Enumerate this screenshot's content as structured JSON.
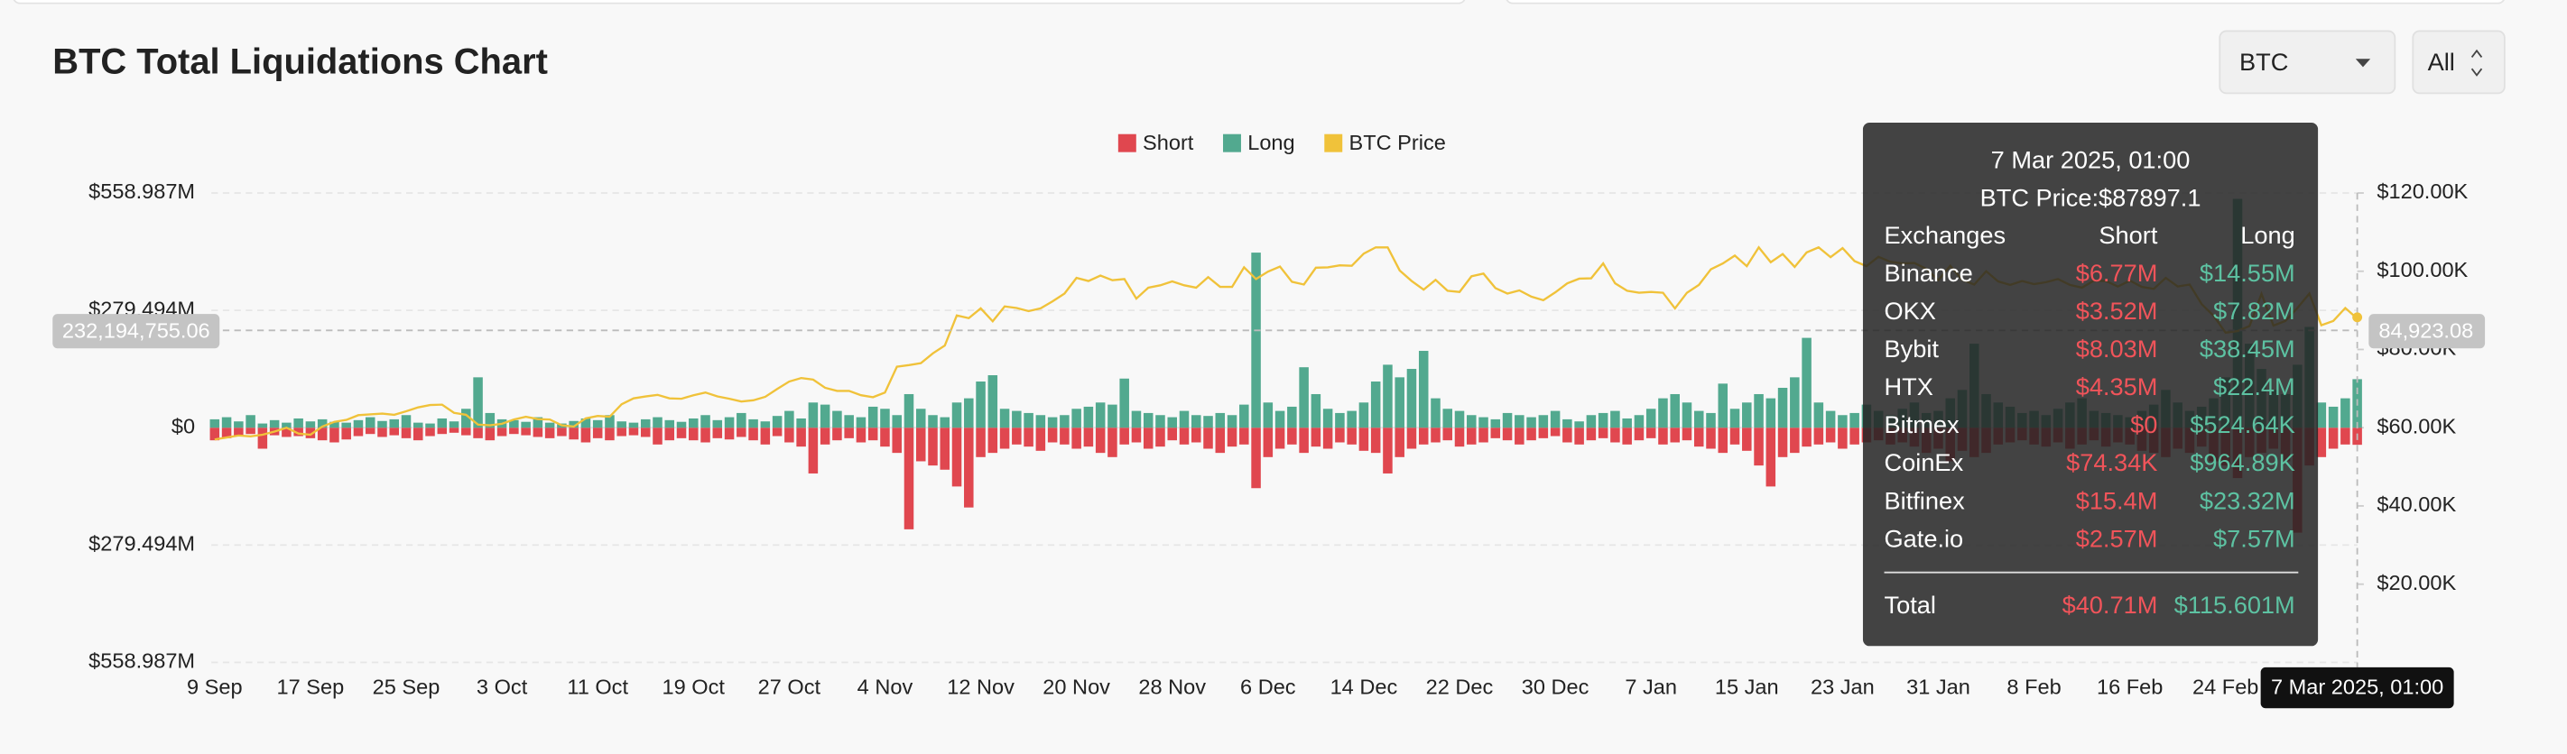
{
  "header": {
    "title": "BTC Total Liquidations Chart",
    "coin_select": "BTC",
    "range_select": "All"
  },
  "chart_data": {
    "type": "bar",
    "legend": "top",
    "categories": [
      "9 Sep",
      null,
      null,
      null,
      null,
      null,
      null,
      null,
      "17 Sep",
      null,
      null,
      null,
      null,
      null,
      null,
      null,
      "25 Sep",
      null,
      null,
      null,
      null,
      null,
      null,
      null,
      "3 Oct",
      null,
      null,
      null,
      null,
      null,
      null,
      null,
      "11 Oct",
      null,
      null,
      null,
      null,
      null,
      null,
      null,
      "19 Oct",
      null,
      null,
      null,
      null,
      null,
      null,
      null,
      "27 Oct",
      null,
      null,
      null,
      null,
      null,
      null,
      null,
      "4 Nov",
      null,
      null,
      null,
      null,
      null,
      null,
      null,
      "12 Nov",
      null,
      null,
      null,
      null,
      null,
      null,
      null,
      "20 Nov",
      null,
      null,
      null,
      null,
      null,
      null,
      null,
      "28 Nov",
      null,
      null,
      null,
      null,
      null,
      null,
      null,
      "6 Dec",
      null,
      null,
      null,
      null,
      null,
      null,
      null,
      "14 Dec",
      null,
      null,
      null,
      null,
      null,
      null,
      null,
      "22 Dec",
      null,
      null,
      null,
      null,
      null,
      null,
      null,
      "30 Dec",
      null,
      null,
      null,
      null,
      null,
      null,
      null,
      "7 Jan",
      null,
      null,
      null,
      null,
      null,
      null,
      null,
      "15 Jan",
      null,
      null,
      null,
      null,
      null,
      null,
      null,
      "23 Jan",
      null,
      null,
      null,
      null,
      null,
      null,
      null,
      "31 Jan",
      null,
      null,
      null,
      null,
      null,
      null,
      null,
      "8 Feb",
      null,
      null,
      null,
      null,
      null,
      null,
      null,
      "16 Feb",
      null,
      null,
      null,
      null,
      null,
      null,
      null,
      "24 Feb",
      null,
      null,
      null,
      null,
      null,
      null,
      null,
      null,
      null,
      null,
      null
    ],
    "ylim": [
      -558.987,
      558.987
    ],
    "yticks": [
      {
        "value": 558.987,
        "label": "$558.987M"
      },
      {
        "value": 279.494,
        "label": "$279.494M"
      },
      {
        "value": 0,
        "label": "$0"
      },
      {
        "value": -279.494,
        "label": "$279.494M"
      },
      {
        "value": -558.987,
        "label": "$558.987M"
      }
    ],
    "y2lim": [
      0,
      120
    ],
    "y2ticks": [
      {
        "value": 120,
        "label": "$120.00K"
      },
      {
        "value": 100,
        "label": "$100.00K"
      },
      {
        "value": 80,
        "label": "$80.00K"
      },
      {
        "value": 60,
        "label": "$60.00K"
      },
      {
        "value": 40,
        "label": "$40.00K"
      },
      {
        "value": 20,
        "label": "$20.00K"
      }
    ],
    "grid": true,
    "series": [
      {
        "name": "Short",
        "color": "#e0474f",
        "values": [
          -30,
          -25,
          -20,
          -15,
          -50,
          -18,
          -22,
          -20,
          -25,
          -30,
          -35,
          -28,
          -20,
          -15,
          -22,
          -18,
          -25,
          -30,
          -20,
          -15,
          -12,
          -18,
          -25,
          -30,
          -20,
          -15,
          -18,
          -22,
          -25,
          -20,
          -28,
          -35,
          -25,
          -30,
          -20,
          -18,
          -22,
          -40,
          -30,
          -25,
          -30,
          -35,
          -25,
          -28,
          -22,
          -30,
          -40,
          -20,
          -35,
          -45,
          -109,
          -40,
          -30,
          -25,
          -35,
          -30,
          -45,
          -60,
          -242,
          -80,
          -90,
          -100,
          -140,
          -190,
          -70,
          -60,
          -50,
          -40,
          -45,
          -55,
          -35,
          -40,
          -50,
          -45,
          -60,
          -70,
          -40,
          -35,
          -50,
          -45,
          -30,
          -40,
          -35,
          -50,
          -60,
          -45,
          -40,
          -144,
          -70,
          -50,
          -40,
          -60,
          -45,
          -50,
          -35,
          -40,
          -55,
          -60,
          -109,
          -70,
          -50,
          -40,
          -35,
          -30,
          -45,
          -40,
          -35,
          -25,
          -30,
          -40,
          -30,
          -25,
          -20,
          -35,
          -40,
          -30,
          -25,
          -35,
          -40,
          -30,
          -25,
          -40,
          -35,
          -30,
          -45,
          -50,
          -60,
          -40,
          -55,
          -90,
          -140,
          -70,
          -60,
          -45,
          -40,
          -35,
          -50,
          -40,
          -35,
          -30,
          -40,
          -35,
          -45,
          -60,
          -50,
          -80,
          -55,
          -70,
          -60,
          -40,
          -35,
          -30,
          -40,
          -45,
          -35,
          -50,
          -40,
          -30,
          -45,
          -35,
          -40,
          -55,
          -60,
          -70,
          -50,
          -60,
          -45,
          -80,
          -90,
          -120,
          -70,
          -60,
          -50,
          -80,
          -250,
          -90,
          -70,
          -50,
          -40,
          -40.71
        ]
      },
      {
        "name": "Long",
        "color": "#52a98f",
        "values": [
          20,
          25,
          15,
          30,
          10,
          18,
          12,
          22,
          15,
          20,
          14,
          12,
          18,
          25,
          16,
          20,
          30,
          12,
          10,
          22,
          15,
          45,
          120,
          35,
          20,
          18,
          14,
          25,
          12,
          10,
          16,
          22,
          18,
          30,
          15,
          12,
          20,
          25,
          18,
          14,
          22,
          30,
          18,
          25,
          35,
          20,
          15,
          28,
          40,
          22,
          60,
          55,
          40,
          30,
          25,
          50,
          45,
          30,
          80,
          45,
          30,
          25,
          60,
          70,
          110,
          125,
          45,
          40,
          35,
          30,
          25,
          30,
          45,
          50,
          60,
          55,
          117,
          40,
          35,
          30,
          25,
          40,
          30,
          28,
          35,
          30,
          55,
          417,
          60,
          40,
          50,
          144,
          80,
          45,
          35,
          40,
          60,
          110,
          150,
          120,
          140,
          183,
          70,
          45,
          40,
          30,
          25,
          20,
          35,
          30,
          25,
          30,
          40,
          20,
          15,
          30,
          35,
          40,
          22,
          30,
          45,
          70,
          80,
          60,
          40,
          35,
          105,
          45,
          60,
          80,
          70,
          95,
          120,
          214,
          60,
          40,
          30,
          35,
          55,
          40,
          30,
          45,
          60,
          35,
          40,
          70,
          90,
          200,
          80,
          60,
          50,
          35,
          40,
          30,
          45,
          60,
          70,
          40,
          35,
          30,
          25,
          40,
          55,
          90,
          60,
          40,
          50,
          70,
          120,
          545,
          200,
          140,
          90,
          80,
          150,
          240,
          60,
          50,
          70,
          115.601
        ]
      },
      {
        "name": "BTC Price",
        "color": "#f0c23a",
        "axis": "y2",
        "values": [
          57,
          57.5,
          58,
          57.8,
          58.2,
          59,
          60,
          58.5,
          58.2,
          60.3,
          61.5,
          62,
          63.2,
          63.4,
          63.6,
          63.3,
          64.2,
          65.2,
          65.8,
          65.9,
          63.8,
          63.3,
          60.8,
          60.6,
          61,
          62.1,
          62.8,
          62.2,
          62.1,
          60.6,
          60.3,
          62.4,
          63,
          62.8,
          66,
          67.5,
          68,
          68.4,
          67.5,
          67.4,
          68.3,
          69,
          68,
          67.4,
          66.7,
          67,
          67.9,
          69.9,
          71.8,
          72.7,
          72.3,
          70.2,
          69.4,
          69.4,
          68.3,
          67.8,
          69,
          75.6,
          76,
          76.5,
          79,
          81,
          88.7,
          88,
          90.5,
          87.2,
          91,
          90.6,
          89.8,
          90.5,
          92.3,
          94.3,
          98.3,
          97.5,
          98.9,
          97.7,
          98,
          93,
          95.8,
          96.4,
          97.4,
          96.4,
          95.8,
          98.5,
          96,
          96,
          101,
          98,
          99.9,
          101.2,
          97.3,
          96.6,
          100.9,
          101,
          101.5,
          101.4,
          104.5,
          106.1,
          106.1,
          100.2,
          97.5,
          95.3,
          97.8,
          95,
          94.7,
          98.7,
          99.4,
          95.7,
          94.3,
          95.1,
          93.5,
          92.6,
          94.6,
          96.9,
          98.1,
          98.2,
          102,
          96.9,
          95,
          94.5,
          94.7,
          94.5,
          90.5,
          94.5,
          96.5,
          100.5,
          102,
          104,
          101.3,
          106.1,
          102.3,
          104.4,
          101.1,
          104.8,
          106.1,
          103.6,
          105.9,
          102.6,
          101.3,
          103.7,
          102.4,
          102,
          102.1,
          100.6,
          97.7,
          101.4,
          97.8,
          96.6,
          100,
          97.4,
          96.5,
          97.5,
          96.7,
          97.2,
          98,
          96.5,
          95.8,
          97.6,
          97.5,
          96.1,
          97.6,
          96,
          95.5,
          98.3,
          96.1,
          96.6,
          91.6,
          88.6,
          84.3,
          84.7,
          86,
          94.2,
          86.1,
          87.3,
          90.6,
          94.3,
          86.2,
          87.3,
          90.6,
          87.8971
        ]
      }
    ],
    "crosshair": {
      "x_label": "7 Mar 2025, 01:00",
      "y_label": "232,194,755.06",
      "y2_label": "84,923.08"
    },
    "tooltip": {
      "title": "7 Mar 2025, 01:00",
      "price": "BTC Price:$87897.1",
      "columns": [
        "Exchanges",
        "Short",
        "Long"
      ],
      "rows": [
        [
          "Binance",
          "$6.77M",
          "$14.55M"
        ],
        [
          "OKX",
          "$3.52M",
          "$7.82M"
        ],
        [
          "Bybit",
          "$8.03M",
          "$38.45M"
        ],
        [
          "HTX",
          "$4.35M",
          "$22.4M"
        ],
        [
          "Bitmex",
          "$0",
          "$524.64K"
        ],
        [
          "CoinEx",
          "$74.34K",
          "$964.89K"
        ],
        [
          "Bitfinex",
          "$15.4M",
          "$23.32M"
        ],
        [
          "Gate.io",
          "$2.57M",
          "$7.57M"
        ]
      ],
      "total": [
        "Total",
        "$40.71M",
        "$115.601M"
      ]
    }
  }
}
